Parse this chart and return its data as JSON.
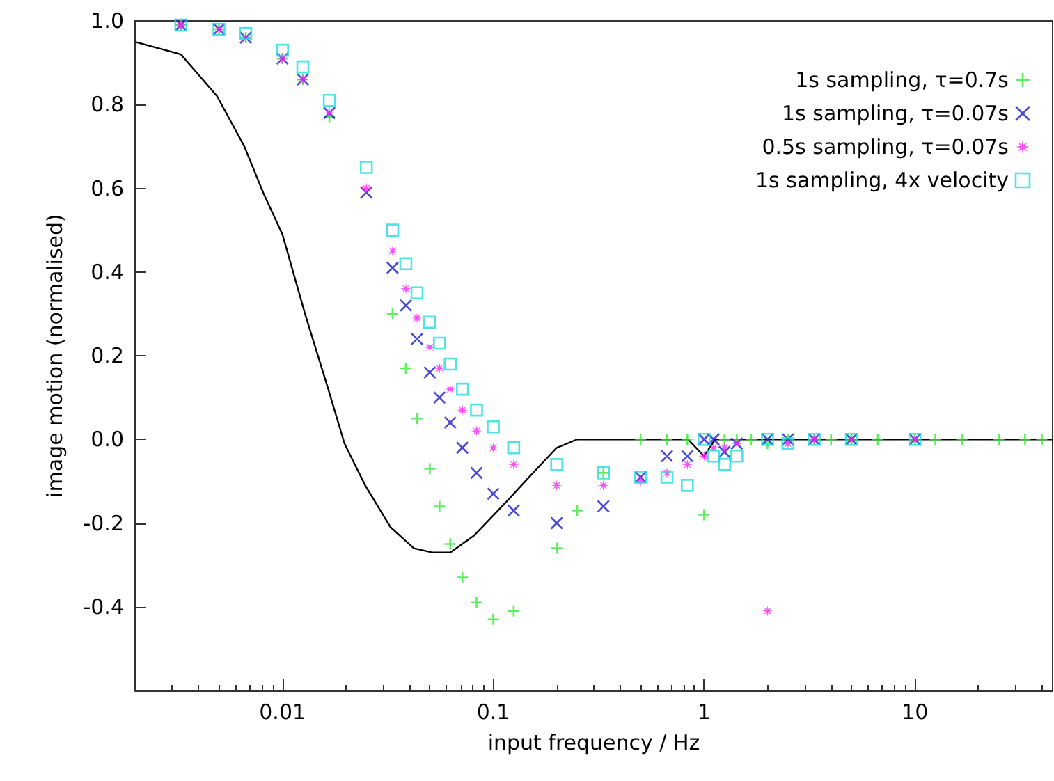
{
  "chart_data": {
    "type": "scatter",
    "xlabel": "input frequency / Hz",
    "ylabel": "image motion (normalised)",
    "log": "x",
    "xlim": [
      0.002,
      45
    ],
    "xticks": [
      0.01,
      0.1,
      1,
      10
    ],
    "ylim": [
      -0.6,
      1.0
    ],
    "yticks": [
      -0.4,
      -0.2,
      {
        "value": 0,
        "label": "0.0"
      },
      0.2,
      0.4,
      0.6,
      0.8,
      {
        "value": 1,
        "label": "1.0"
      }
    ],
    "grid": false,
    "legend": "top right",
    "series": [
      {
        "name": "1s sampling, τ=0.7s",
        "color": "#33ee33",
        "marker": "plus",
        "x": [
          0.0033,
          0.005,
          0.0067,
          0.01,
          0.0125,
          0.0167,
          0.0333,
          0.0385,
          0.0435,
          0.05,
          0.0556,
          0.0625,
          0.0714,
          0.0833,
          0.1,
          0.125,
          0.2,
          0.25,
          0.333,
          0.5,
          0.667,
          0.833,
          1,
          1.25,
          1.43,
          1.67,
          2,
          2.5,
          3.33,
          4,
          5,
          6.67,
          10,
          12.5,
          16.7,
          25,
          33.3,
          40
        ],
        "values": [
          0.99,
          0.98,
          0.96,
          0.91,
          0.86,
          0.77,
          0.3,
          0.17,
          0.05,
          -0.07,
          -0.16,
          -0.25,
          -0.33,
          -0.39,
          -0.43,
          -0.41,
          -0.26,
          -0.17,
          -0.08,
          0,
          0,
          0,
          -0.18,
          0,
          0,
          0,
          -0.01,
          0,
          0,
          0,
          0,
          0,
          0,
          0,
          0,
          0,
          0,
          0
        ]
      },
      {
        "name": "1s sampling, τ=0.07s",
        "color": "#1a1acc",
        "marker": "cross",
        "x": [
          0.0033,
          0.005,
          0.0067,
          0.01,
          0.0125,
          0.0167,
          0.025,
          0.0333,
          0.0385,
          0.0435,
          0.05,
          0.0556,
          0.0625,
          0.0714,
          0.0833,
          0.1,
          0.125,
          0.2,
          0.333,
          0.5,
          0.667,
          0.833,
          1,
          1.11,
          1.25,
          1.43,
          2,
          2.5,
          3.33,
          5,
          10
        ],
        "values": [
          0.99,
          0.98,
          0.96,
          0.91,
          0.86,
          0.78,
          0.59,
          0.41,
          0.32,
          0.24,
          0.16,
          0.1,
          0.04,
          -0.02,
          -0.08,
          -0.13,
          -0.17,
          -0.2,
          -0.16,
          -0.09,
          -0.04,
          -0.04,
          0,
          0,
          -0.03,
          -0.01,
          0,
          0,
          0,
          0,
          0
        ]
      },
      {
        "name": "0.5s sampling, τ=0.07s",
        "color": "#ff22ff",
        "marker": "star",
        "x": [
          0.0033,
          0.005,
          0.0067,
          0.01,
          0.0125,
          0.0167,
          0.025,
          0.0333,
          0.0385,
          0.0435,
          0.05,
          0.0556,
          0.0625,
          0.0714,
          0.0833,
          0.1,
          0.125,
          0.2,
          0.333,
          0.5,
          0.667,
          0.833,
          1,
          1.11,
          1.25,
          1.43,
          2,
          2.5,
          3.33,
          5,
          10
        ],
        "values": [
          0.99,
          0.98,
          0.96,
          0.91,
          0.86,
          0.78,
          0.6,
          0.45,
          0.36,
          0.29,
          0.22,
          0.17,
          0.12,
          0.07,
          0.02,
          -0.02,
          -0.06,
          -0.11,
          -0.11,
          -0.1,
          -0.08,
          -0.06,
          -0.04,
          -0.02,
          -0.02,
          -0.01,
          -0.41,
          -0.01,
          0,
          0,
          0
        ]
      },
      {
        "name": "1s sampling, 4x velocity",
        "color": "#22dddd",
        "marker": "square",
        "x": [
          0.0033,
          0.005,
          0.0067,
          0.01,
          0.0125,
          0.0167,
          0.025,
          0.0333,
          0.0385,
          0.0435,
          0.05,
          0.0556,
          0.0625,
          0.0714,
          0.0833,
          0.1,
          0.125,
          0.2,
          0.333,
          0.5,
          0.667,
          0.833,
          1,
          1.11,
          1.25,
          1.43,
          2,
          2.5,
          3.33,
          5,
          10
        ],
        "values": [
          0.99,
          0.98,
          0.97,
          0.93,
          0.89,
          0.81,
          0.65,
          0.5,
          0.42,
          0.35,
          0.28,
          0.23,
          0.18,
          0.12,
          0.07,
          0.03,
          -0.02,
          -0.06,
          -0.08,
          -0.09,
          -0.09,
          -0.11,
          0,
          -0.04,
          -0.06,
          -0.04,
          0,
          -0.01,
          0,
          0,
          0
        ]
      },
      {
        "type": "line",
        "color": "#000000",
        "marker": "none",
        "x": [
          0.002,
          0.0033,
          0.0049,
          0.0066,
          0.0081,
          0.01,
          0.0128,
          0.0165,
          0.0197,
          0.0247,
          0.0326,
          0.042,
          0.0513,
          0.0627,
          0.081,
          0.115,
          0.148,
          0.2,
          0.25,
          0.84,
          1.0,
          1.13,
          45
        ],
        "values": [
          0.95,
          0.92,
          0.82,
          0.7,
          0.59,
          0.49,
          0.3,
          0.12,
          -0.01,
          -0.11,
          -0.21,
          -0.26,
          -0.27,
          -0.27,
          -0.23,
          -0.15,
          -0.09,
          -0.02,
          0,
          0,
          -0.04,
          0,
          0
        ]
      }
    ]
  }
}
